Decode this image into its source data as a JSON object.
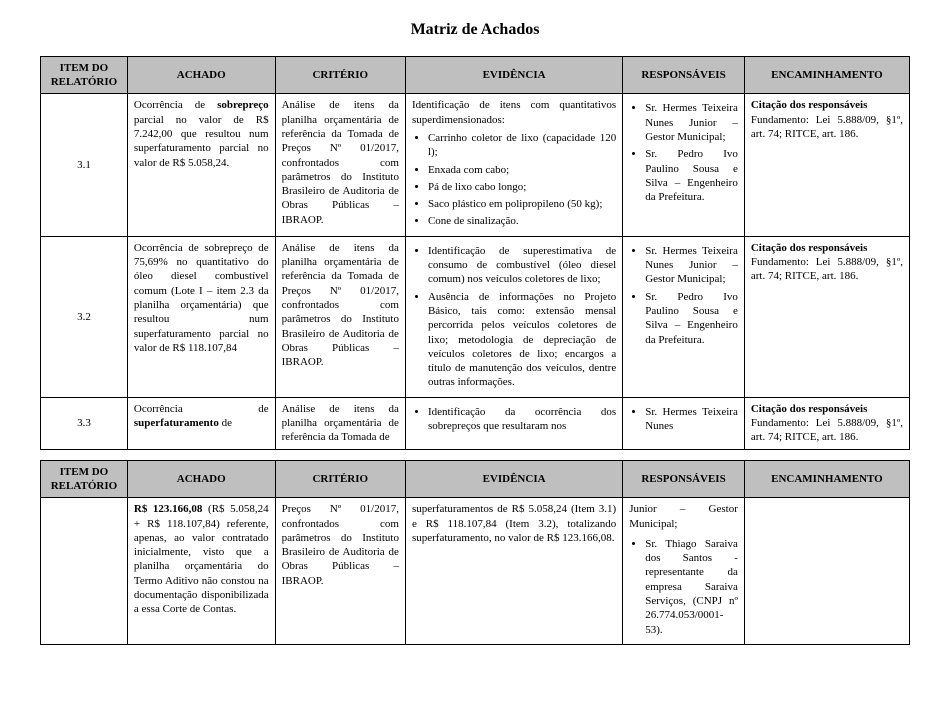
{
  "title": "Matriz de Achados",
  "headers": {
    "item": "ITEM DO RELATÓRIO",
    "achado": "ACHADO",
    "criterio": "CRITÉRIO",
    "evidencia": "EVIDÊNCIA",
    "responsaveis": "RESPONSÁVEIS",
    "encaminhamento": "ENCAMINHAMENTO"
  },
  "colors": {
    "header_bg": "#bfbfbf",
    "border": "#000000",
    "text": "#000000",
    "bg": "#ffffff"
  },
  "row31": {
    "item": "3.1",
    "achado_pre": "Ocorrência de ",
    "achado_bold": "sobrepreço",
    "achado_post": " parcial no valor de R$ 7.242,00 que resultou num superfaturamento parcial no valor de R$ 5.058,24.",
    "criterio": "Análise de itens da planilha orçamentária de referência da Tomada de Preços Nº 01/2017, confrontados com parâmetros do Instituto Brasileiro de Auditoria de Obras Públicas – IBRAOP.",
    "ev_lead": "Identificação de itens com quantitativos superdimensionados:",
    "ev_items": [
      "Carrinho coletor de lixo (capacidade 120 l);",
      "Enxada com cabo;",
      "Pá de lixo cabo longo;",
      "Saco plástico em polipropileno (50 kg);",
      "Cone de sinalização."
    ],
    "resp_items": [
      "Sr. Hermes Teixeira Nunes Junior – Gestor Municipal;",
      "Sr. Pedro Ivo Paulino Sousa e Silva – Engenheiro da Prefeitura."
    ],
    "enc_bold": "Citação dos responsáveis",
    "enc_rest": "Fundamento: Lei 5.888/09, §1º, art. 74; RITCE, art. 186."
  },
  "row32": {
    "item": "3.2",
    "achado": "Ocorrência de sobrepreço de 75,69% no quantitativo do óleo diesel combustível comum (Lote I – item 2.3 da planilha orçamentária) que resultou num superfaturamento parcial no valor de R$ 118.107,84",
    "criterio": "Análise de itens da planilha orçamentária de referência da Tomada de Preços Nº 01/2017, confrontados com parâmetros do Instituto Brasileiro de Auditoria de Obras Públicas – IBRAOP.",
    "ev_items": [
      "Identificação de superestimativa de consumo de combustível (óleo diesel comum) nos veículos coletores de lixo;",
      "Ausência de informações no Projeto Básico, tais como: extensão mensal percorrida pelos veículos coletores de lixo; metodologia de depreciação de veículos coletores de lixo; encargos a título de manutenção dos veículos, dentre outras informações."
    ],
    "resp_items": [
      "Sr. Hermes Teixeira Nunes Junior – Gestor Municipal;",
      "Sr. Pedro Ivo Paulino Sousa e Silva – Engenheiro da Prefeitura."
    ],
    "enc_bold": "Citação dos responsáveis",
    "enc_rest": "Fundamento: Lei 5.888/09, §1º, art. 74; RITCE, art. 186."
  },
  "row33a": {
    "item": "3.3",
    "achado_pre": "Ocorrência de ",
    "achado_bold": "superfaturamento",
    "achado_post": " de",
    "criterio": "Análise de itens da planilha orçamentária de referência da Tomada de",
    "ev1": "Identificação da ocorrência dos sobrepreços que resultaram nos",
    "resp1": "Sr. Hermes Teixeira Nunes",
    "enc_bold": "Citação dos responsáveis",
    "enc_rest": "Fundamento: Lei 5.888/09, §1º, art. 74; RITCE, art. 186."
  },
  "row33b": {
    "achado_bold": "R$ 123.166,08",
    "achado_post": " (R$ 5.058,24 + R$ 118.107,84) referente, apenas, ao valor contratado inicialmente, visto que a planilha orçamentária do Termo Aditivo não constou na documentação disponibilizada a essa Corte de Contas.",
    "criterio": "Preços Nº 01/2017, confrontados com parâmetros do Instituto Brasileiro de Auditoria de Obras Públicas – IBRAOP.",
    "evidencia": "superfaturamentos de R$ 5.058,24 (Item 3.1) e R$ 118.107,84 (Item 3.2), totalizando superfaturamento, no valor de R$ 123.166,08.",
    "resp_lead": "Junior – Gestor Municipal;",
    "resp2": "Sr. Thiago Saraiva dos Santos - representante da empresa Saraiva Serviços, (CNPJ nº 26.774.053/0001-53)."
  }
}
